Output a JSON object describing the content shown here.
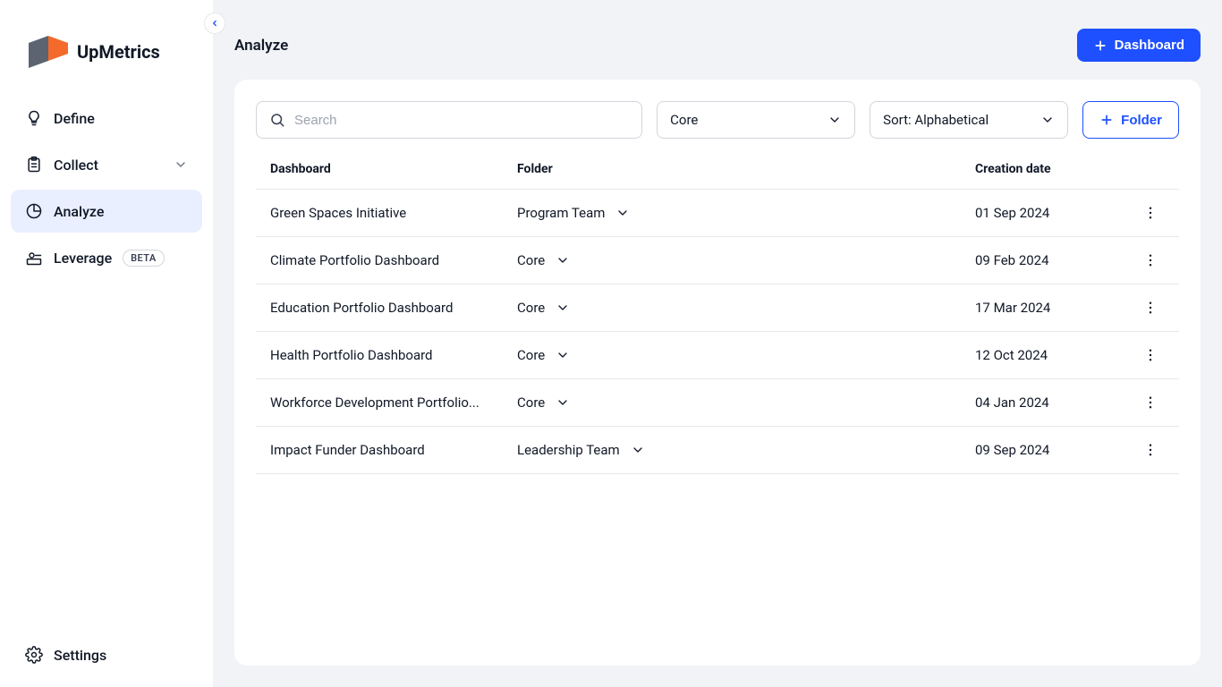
{
  "brand": {
    "name": "UpMetrics"
  },
  "sidebar": {
    "items": [
      {
        "label": "Define"
      },
      {
        "label": "Collect"
      },
      {
        "label": "Analyze"
      },
      {
        "label": "Leverage",
        "badge": "BETA"
      }
    ],
    "settings_label": "Settings"
  },
  "header": {
    "title": "Analyze",
    "dashboard_button": "Dashboard"
  },
  "controls": {
    "search_placeholder": "Search",
    "filter_value": "Core",
    "sort_value": "Sort: Alphabetical",
    "folder_button": "Folder"
  },
  "table": {
    "columns": {
      "c1": "Dashboard",
      "c2": "Folder",
      "c3": "Creation date"
    },
    "rows": [
      {
        "name": "Green Spaces Initiative",
        "folder": "Program Team",
        "date": "01 Sep 2024"
      },
      {
        "name": "Climate Portfolio Dashboard",
        "folder": "Core",
        "date": "09 Feb 2024"
      },
      {
        "name": "Education Portfolio Dashboard",
        "folder": "Core",
        "date": "17 Mar 2024"
      },
      {
        "name": "Health Portfolio Dashboard",
        "folder": "Core",
        "date": "12 Oct 2024"
      },
      {
        "name": "Workforce Development Portfolio...",
        "folder": "Core",
        "date": "04 Jan 2024"
      },
      {
        "name": "Impact Funder Dashboard",
        "folder": "Leadership Team",
        "date": "09 Sep 2024"
      }
    ]
  },
  "colors": {
    "primary": "#1e50ff",
    "sidebar_active_bg": "#eaefff",
    "page_bg": "#f1f3f6",
    "border": "#e5e7eb",
    "text": "#111827",
    "logo_orange": "#f36a2b",
    "logo_gray": "#5b6470"
  }
}
